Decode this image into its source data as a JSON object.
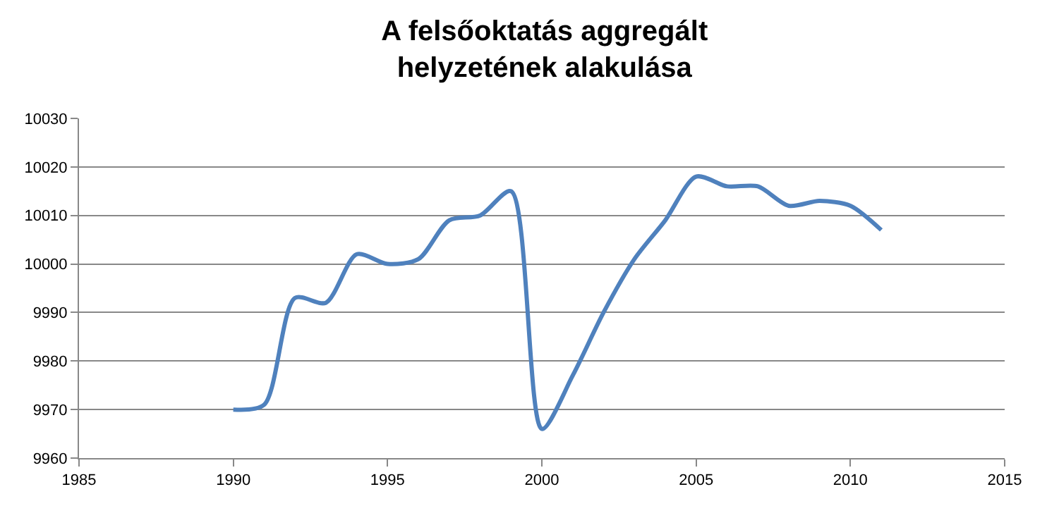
{
  "chart_data": {
    "type": "line",
    "title": "A felsőoktatás aggregált\nhelyzetének alakulása",
    "x": [
      1990,
      1991,
      1992,
      1993,
      1994,
      1995,
      1996,
      1997,
      1998,
      1999,
      2000,
      2001,
      2002,
      2003,
      2004,
      2005,
      2006,
      2007,
      2008,
      2009,
      2010,
      2011
    ],
    "series": [
      {
        "color": "#4f81bd",
        "values": [
          9970,
          9971,
          9993,
          9992,
          10002,
          10000,
          10001,
          10009,
          10010,
          10015,
          9966,
          9977,
          9990,
          10001,
          10009,
          10018,
          10016,
          10016,
          10012,
          10013,
          10012,
          10007
        ]
      }
    ],
    "xlim": [
      1985,
      2015
    ],
    "xticks": [
      1985,
      1990,
      1995,
      2000,
      2005,
      2010,
      2015
    ],
    "ylim": [
      9960,
      10030
    ],
    "yticks": [
      9960,
      9970,
      9980,
      9990,
      10000,
      10010,
      10020,
      10030
    ],
    "grid": "y",
    "marker": "none",
    "line_style": "solid"
  }
}
